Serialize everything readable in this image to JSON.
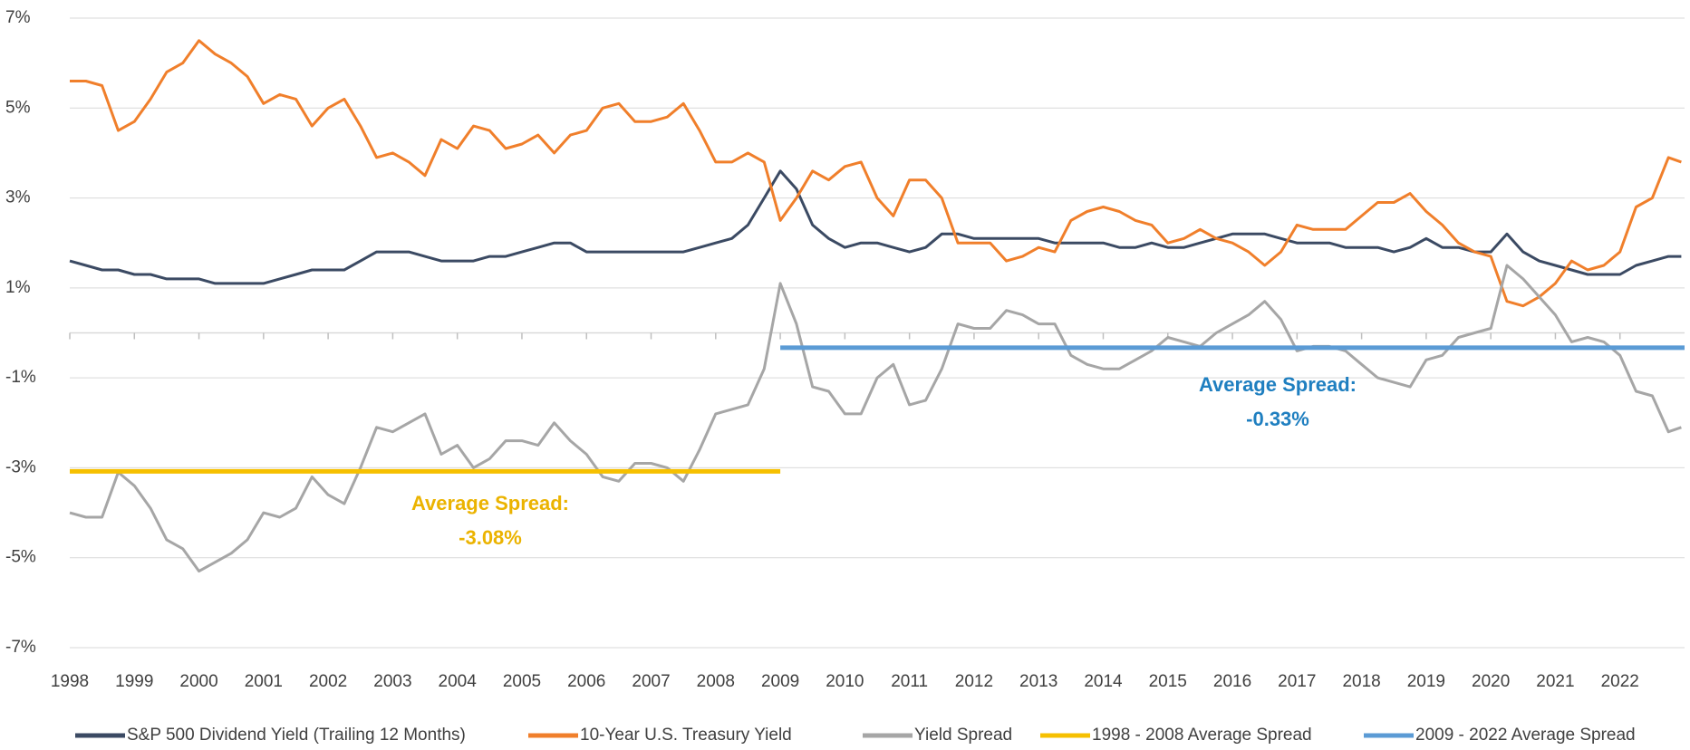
{
  "chart_data": {
    "type": "line",
    "x": [
      1998,
      1998.25,
      1998.5,
      1998.75,
      1999,
      1999.25,
      1999.5,
      1999.75,
      2000,
      2000.25,
      2000.5,
      2000.75,
      2001,
      2001.25,
      2001.5,
      2001.75,
      2002,
      2002.25,
      2002.5,
      2002.75,
      2003,
      2003.25,
      2003.5,
      2003.75,
      2004,
      2004.25,
      2004.5,
      2004.75,
      2005,
      2005.25,
      2005.5,
      2005.75,
      2006,
      2006.25,
      2006.5,
      2006.75,
      2007,
      2007.25,
      2007.5,
      2007.75,
      2008,
      2008.25,
      2008.5,
      2008.75,
      2009,
      2009.25,
      2009.5,
      2009.75,
      2010,
      2010.25,
      2010.5,
      2010.75,
      2011,
      2011.25,
      2011.5,
      2011.75,
      2012,
      2012.25,
      2012.5,
      2012.75,
      2013,
      2013.25,
      2013.5,
      2013.75,
      2014,
      2014.25,
      2014.5,
      2014.75,
      2015,
      2015.25,
      2015.5,
      2015.75,
      2016,
      2016.25,
      2016.5,
      2016.75,
      2017,
      2017.25,
      2017.5,
      2017.75,
      2018,
      2018.25,
      2018.5,
      2018.75,
      2019,
      2019.25,
      2019.5,
      2019.75,
      2020,
      2020.25,
      2020.5,
      2020.75,
      2021,
      2021.25,
      2021.5,
      2021.75,
      2022,
      2022.25,
      2022.5,
      2022.75,
      2022.95
    ],
    "series": [
      {
        "name": "S&P 500 Dividend Yield (Trailing 12 Months)",
        "color": "#3b4a63",
        "values": [
          1.6,
          1.5,
          1.4,
          1.4,
          1.3,
          1.3,
          1.2,
          1.2,
          1.2,
          1.1,
          1.1,
          1.1,
          1.1,
          1.2,
          1.3,
          1.4,
          1.4,
          1.4,
          1.6,
          1.8,
          1.8,
          1.8,
          1.7,
          1.6,
          1.6,
          1.6,
          1.7,
          1.7,
          1.8,
          1.9,
          2.0,
          2.0,
          1.8,
          1.8,
          1.8,
          1.8,
          1.8,
          1.8,
          1.8,
          1.9,
          2.0,
          2.1,
          2.4,
          3.0,
          3.6,
          3.2,
          2.4,
          2.1,
          1.9,
          2.0,
          2.0,
          1.9,
          1.8,
          1.9,
          2.2,
          2.2,
          2.1,
          2.1,
          2.1,
          2.1,
          2.1,
          2.0,
          2.0,
          2.0,
          2.0,
          1.9,
          1.9,
          2.0,
          1.9,
          1.9,
          2.0,
          2.1,
          2.2,
          2.2,
          2.2,
          2.1,
          2.0,
          2.0,
          2.0,
          1.9,
          1.9,
          1.9,
          1.8,
          1.9,
          2.1,
          1.9,
          1.9,
          1.8,
          1.8,
          2.2,
          1.8,
          1.6,
          1.5,
          1.4,
          1.3,
          1.3,
          1.3,
          1.5,
          1.6,
          1.7,
          1.7
        ]
      },
      {
        "name": "10-Year U.S. Treasury Yield",
        "color": "#f07f2b",
        "values": [
          5.6,
          5.6,
          5.5,
          4.5,
          4.7,
          5.2,
          5.8,
          6.0,
          6.5,
          6.2,
          6.0,
          5.7,
          5.1,
          5.3,
          5.2,
          4.6,
          5.0,
          5.2,
          4.6,
          3.9,
          4.0,
          3.8,
          3.5,
          4.3,
          4.1,
          4.6,
          4.5,
          4.1,
          4.2,
          4.4,
          4.0,
          4.4,
          4.5,
          5.0,
          5.1,
          4.7,
          4.7,
          4.8,
          5.1,
          4.5,
          3.8,
          3.8,
          4.0,
          3.8,
          2.5,
          3.0,
          3.6,
          3.4,
          3.7,
          3.8,
          3.0,
          2.6,
          3.4,
          3.4,
          3.0,
          2.0,
          2.0,
          2.0,
          1.6,
          1.7,
          1.9,
          1.8,
          2.5,
          2.7,
          2.8,
          2.7,
          2.5,
          2.4,
          2.0,
          2.1,
          2.3,
          2.1,
          2.0,
          1.8,
          1.5,
          1.8,
          2.4,
          2.3,
          2.3,
          2.3,
          2.6,
          2.9,
          2.9,
          3.1,
          2.7,
          2.4,
          2.0,
          1.8,
          1.7,
          0.7,
          0.6,
          0.8,
          1.1,
          1.6,
          1.4,
          1.5,
          1.8,
          2.8,
          3.0,
          3.9,
          3.8
        ]
      },
      {
        "name": "Yield Spread",
        "color": "#a6a6a6",
        "values": [
          -4.0,
          -4.1,
          -4.1,
          -3.1,
          -3.4,
          -3.9,
          -4.6,
          -4.8,
          -5.3,
          -5.1,
          -4.9,
          -4.6,
          -4.0,
          -4.1,
          -3.9,
          -3.2,
          -3.6,
          -3.8,
          -3.0,
          -2.1,
          -2.2,
          -2.0,
          -1.8,
          -2.7,
          -2.5,
          -3.0,
          -2.8,
          -2.4,
          -2.4,
          -2.5,
          -2.0,
          -2.4,
          -2.7,
          -3.2,
          -3.3,
          -2.9,
          -2.9,
          -3.0,
          -3.3,
          -2.6,
          -1.8,
          -1.7,
          -1.6,
          -0.8,
          1.1,
          0.2,
          -1.2,
          -1.3,
          -1.8,
          -1.8,
          -1.0,
          -0.7,
          -1.6,
          -1.5,
          -0.8,
          0.2,
          0.1,
          0.1,
          0.5,
          0.4,
          0.2,
          0.2,
          -0.5,
          -0.7,
          -0.8,
          -0.8,
          -0.6,
          -0.4,
          -0.1,
          -0.2,
          -0.3,
          0.0,
          0.2,
          0.4,
          0.7,
          0.3,
          -0.4,
          -0.3,
          -0.3,
          -0.4,
          -0.7,
          -1.0,
          -1.1,
          -1.2,
          -0.6,
          -0.5,
          -0.1,
          0.0,
          0.1,
          1.5,
          1.2,
          0.8,
          0.4,
          -0.2,
          -0.1,
          -0.2,
          -0.5,
          -1.3,
          -1.4,
          -2.2,
          -2.1
        ]
      },
      {
        "name": "1998 - 2008 Average Spread",
        "color": "#f6c000",
        "x": [
          1998,
          2009
        ],
        "values": [
          -3.08,
          -3.08
        ]
      },
      {
        "name": "2009 - 2022 Average Spread",
        "color": "#5b9bd5",
        "x": [
          2009,
          2023
        ],
        "values": [
          -0.33,
          -0.33
        ]
      }
    ],
    "annotations": [
      {
        "color": "#ebb300",
        "lines": [
          "Average Spread:",
          "-3.08%"
        ]
      },
      {
        "color": "#1f7fc0",
        "lines": [
          "Average Spread:",
          "-0.33%"
        ]
      }
    ],
    "xlim": [
      1998,
      2023
    ],
    "xticks": [
      1998,
      1999,
      2000,
      2001,
      2002,
      2003,
      2004,
      2005,
      2006,
      2007,
      2008,
      2009,
      2010,
      2011,
      2012,
      2013,
      2014,
      2015,
      2016,
      2017,
      2018,
      2019,
      2020,
      2021,
      2022
    ],
    "ylim": [
      -7,
      7
    ],
    "yticks": [
      {
        "value": 7,
        "label": "7%"
      },
      {
        "value": 5,
        "label": "5%"
      },
      {
        "value": 3,
        "label": "3%"
      },
      {
        "value": 1,
        "label": "1%"
      },
      {
        "value": -1,
        "label": "-1%"
      },
      {
        "value": -3,
        "label": "-3%"
      },
      {
        "value": -5,
        "label": "-5%"
      },
      {
        "value": -7,
        "label": "-7%"
      }
    ],
    "grid": true
  }
}
